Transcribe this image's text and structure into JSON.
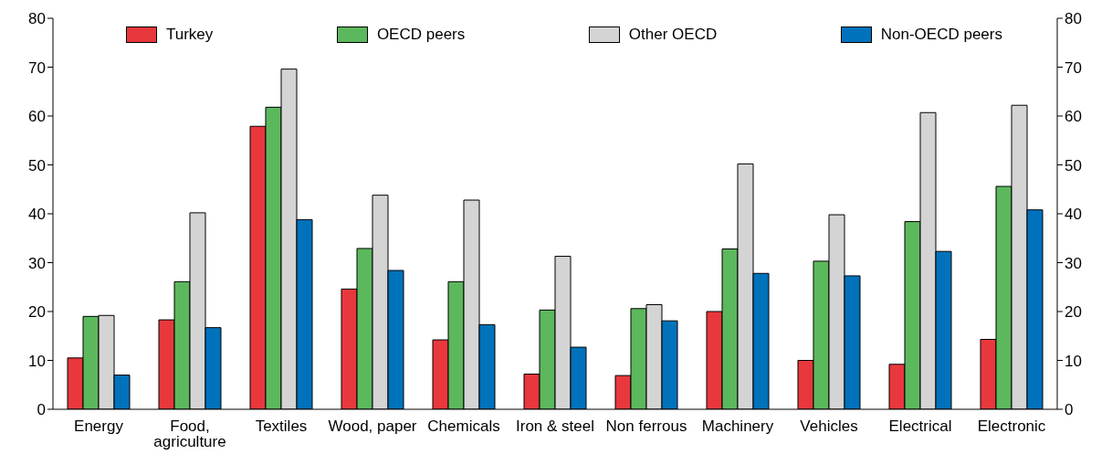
{
  "chart_data": {
    "type": "bar",
    "categories": [
      "Energy",
      "Food, agriculture",
      "Textiles",
      "Wood, paper",
      "Chemicals",
      "Iron & steel",
      "Non ferrous",
      "Machinery",
      "Vehicles",
      "Electrical",
      "Electronic"
    ],
    "series": [
      {
        "name": "Turkey",
        "color": "#e8383d",
        "values": [
          10.5,
          18.3,
          57.9,
          24.6,
          14.2,
          7.2,
          6.9,
          20.0,
          10.0,
          9.2,
          14.3
        ]
      },
      {
        "name": "OECD peers",
        "color": "#5cb85c",
        "values": [
          19.0,
          26.1,
          61.8,
          32.9,
          26.1,
          20.3,
          20.6,
          32.8,
          30.3,
          38.4,
          45.6
        ]
      },
      {
        "name": "Other OECD",
        "color": "#d4d4d4",
        "values": [
          19.2,
          40.2,
          69.6,
          43.8,
          42.8,
          31.3,
          21.4,
          50.2,
          39.8,
          60.7,
          62.2
        ]
      },
      {
        "name": "Non-OECD peers",
        "color": "#0072bb",
        "values": [
          7.0,
          16.7,
          38.8,
          28.4,
          17.3,
          12.7,
          18.1,
          27.8,
          27.3,
          32.3,
          40.8
        ]
      }
    ],
    "ylim": [
      0,
      80
    ],
    "yticks": [
      0,
      10,
      20,
      30,
      40,
      50,
      60,
      70,
      80
    ],
    "y2lim": [
      0,
      80
    ],
    "y2ticks": [
      0,
      10,
      20,
      30,
      40,
      50,
      60,
      70,
      80
    ],
    "grid": false,
    "legend": "top"
  }
}
